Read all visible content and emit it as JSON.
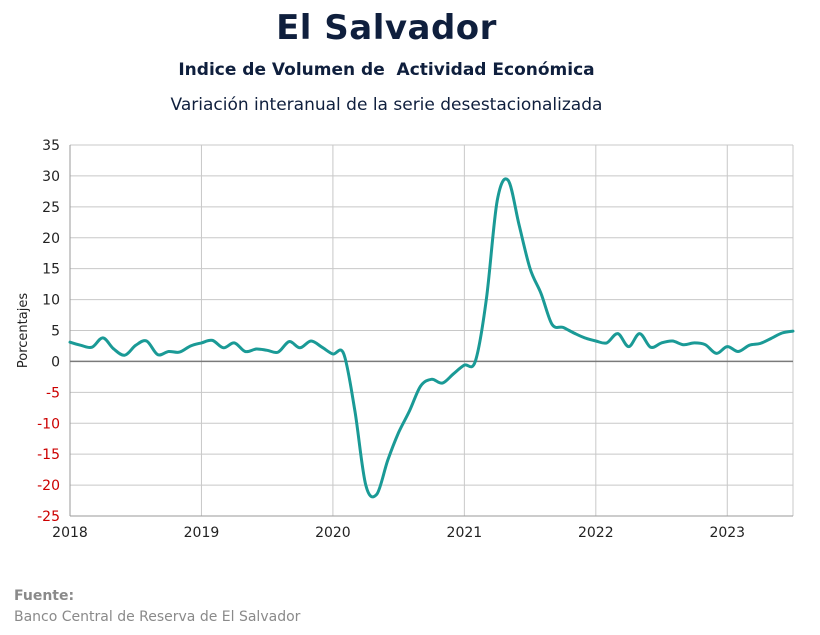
{
  "title": "El Salvador",
  "subtitle": "Indice de Volumen de  Actividad Económica",
  "subtitle2": "Variación interanual de la serie desestacionalizada",
  "source": {
    "label": "Fuente:",
    "text": "Banco Central de Reserva de El Salvador"
  },
  "colors": {
    "line": "#1a9a96",
    "negative_tick": "#cc0000",
    "grid": "#c8c8c8",
    "zero_line": "#7a7a7a"
  },
  "chart_data": {
    "type": "line",
    "title": "El Salvador",
    "xlabel": "",
    "ylabel": "Porcentajes",
    "xlim": [
      2018,
      2023.5
    ],
    "ylim": [
      -25,
      35
    ],
    "yticks": [
      35,
      30,
      25,
      20,
      15,
      10,
      5,
      0,
      -5,
      -10,
      -15,
      -20,
      -25
    ],
    "ytick_labels": [
      "35",
      "30",
      "25",
      "20",
      "15",
      "10",
      "5",
      "0",
      "-5",
      "-10",
      "-15",
      "-20",
      "-25"
    ],
    "xticks": [
      2018,
      2019,
      2020,
      2021,
      2022,
      2023
    ],
    "xtick_labels": [
      "2018",
      "2019",
      "2020",
      "2021",
      "2022",
      "2023"
    ],
    "grid": true,
    "series": [
      {
        "x": [
          2018.0,
          2018.083,
          2018.167,
          2018.25,
          2018.333,
          2018.417,
          2018.5,
          2018.583,
          2018.667,
          2018.75,
          2018.833,
          2018.917,
          2019.0,
          2019.083,
          2019.167,
          2019.25,
          2019.333,
          2019.417,
          2019.5,
          2019.583,
          2019.667,
          2019.75,
          2019.833,
          2019.917,
          2020.0,
          2020.083,
          2020.167,
          2020.25,
          2020.333,
          2020.417,
          2020.5,
          2020.583,
          2020.667,
          2020.75,
          2020.833,
          2020.917,
          2021.0,
          2021.083,
          2021.167,
          2021.25,
          2021.333,
          2021.417,
          2021.5,
          2021.583,
          2021.667,
          2021.75,
          2021.833,
          2021.917,
          2022.0,
          2022.083,
          2022.167,
          2022.25,
          2022.333,
          2022.417,
          2022.5,
          2022.583,
          2022.667,
          2022.75,
          2022.833,
          2022.917,
          2023.0,
          2023.083,
          2023.167,
          2023.25,
          2023.333,
          2023.417,
          2023.5
        ],
        "y": [
          3.1,
          2.6,
          2.3,
          3.8,
          2.0,
          1.0,
          2.6,
          3.3,
          1.1,
          1.6,
          1.5,
          2.5,
          3.0,
          3.4,
          2.2,
          3.0,
          1.6,
          2.0,
          1.8,
          1.5,
          3.2,
          2.2,
          3.3,
          2.3,
          1.2,
          1.2,
          -8.0,
          -20.0,
          -21.5,
          -16.0,
          -11.5,
          -8.0,
          -4.0,
          -2.9,
          -3.5,
          -2.0,
          -0.6,
          0.0,
          10.0,
          26.0,
          29.3,
          22.0,
          15.0,
          11.0,
          6.0,
          5.5,
          4.6,
          3.8,
          3.3,
          3.0,
          4.5,
          2.4,
          4.5,
          2.3,
          3.0,
          3.3,
          2.7,
          3.0,
          2.7,
          1.3,
          2.4,
          1.6,
          2.6,
          2.9,
          3.7,
          4.6,
          4.9
        ]
      }
    ]
  }
}
